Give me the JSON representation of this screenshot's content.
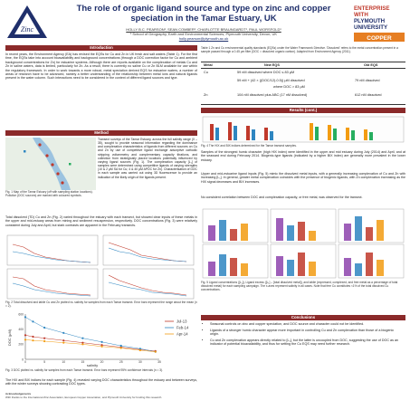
{
  "header": {
    "title_line1": "The role of organic ligand source and type on zinc and copper",
    "title_line2": "speciation in the Tamar Estuary, UK",
    "authors": "HOLLY B.C. PEARSON¹, SEAN COMBER¹, CHARLOTTE BRAUNGARDT¹, PAUL WORSFOLD¹",
    "affiliation": "¹ School of Geography, Earth and Environmental Sciences, Plymouth University, Devon, UK",
    "email": "holly.pearson@plymouth.ac.uk",
    "logo_left_text": "Zinc",
    "logo_right_line1": "ENTERPRISE",
    "logo_right_line2": "WITH",
    "logo_right_line3": "PLYMOUTH",
    "logo_right_line4": "UNIVERSITY",
    "logo_right_line5": "COPPER"
  },
  "sections": {
    "introduction": "Introduction",
    "method": "Method",
    "results": "Results (cont.)",
    "conclusions": "Conclusions"
  },
  "intro_text": "In recent years, the Environment Agency (EA) has revised the EQSs for Cu and Zn in UK fresh and salt waters (Table 1). For the first time, the EQSs take into account bioavailability and background concentrations (through a DOC correction factor for Cu and ambient background concentrations for Zn) for estuarine systems. Although there are reports available on the complexation of metals Cu and Zn in saline waters, data is limited, particularly for Zn. As a result, there is currently no saline Cu or Zn BLM available for use within the regulatory framework. In order to work towards a more robust, metal speciation derived EQS for estuarine waters, a number of areas of research have to be advanced, namely a better understanding of the relationship between metal ions and natural ligands present in the water column. Such interactions need to be considered in the context of different ligand sources and type.",
  "table1": {
    "caption": "Table 1 Zn and Cu environmental quality standards (EQSs) under the Water Framework Directive. 'Dissolved' refers to the metal concentration present in a sample passed through a 0.45 μm filter (DOC = dissolved organic carbon). Adapted from Environment Agency (2011).",
    "headers": [
      "Metal",
      "New EQS",
      "Old EQS"
    ],
    "rows": [
      [
        "Cu",
        "59 nM dissolved where DOC ≤ 83 μM",
        ""
      ],
      [
        "",
        "59 nM + (42 × ((DOC/12)-0.5)) μM dissolved",
        "79 nM dissolved"
      ],
      [
        "",
        "where DOC > 83 μM",
        ""
      ],
      [
        "Zn",
        "104 nM dissolved plus ABC (17 nM dissolved)",
        "612 nM dissolved"
      ]
    ]
  },
  "method_text": "Transect surveys of the Tamar Estuary, across the full salinity range (0 – 35), sought to provide seasonal information regarding the dominance and complexation characteristics of ligands from different sources on Cu and Zn by use of competitive ligand exchange adsorptive cathodic stripping voltammetry and complementary capacity titrations, and collection from strategically placed locations potentially influenced by varying ligand sources (Fig. 1). The complexation capacity [L₁] of samples were determined using competitive ligands of varying strengths (10 & 2 μM SA for Cu; 4 & 40 μM APDC for Zn). Characterisation of DOC in each sample was carried out using 3D fluorescence to provide an indication of the likely origin of the ligands present.",
  "fig1_caption": "Fig. 1 Map of the Tamar Estuary (off with sampling station locations). Pollution (DOC sources) are marked with coloured symbols.",
  "results_text1": "Total dissolved (TD) Cu and Zn (Fig. 2) varied throughout the estuary with each transect, but showed clear inputs of these metals in the upper and mid-estuary areas from mining and sediment resuspension, respectively. DOC concentrations (Fig. 3) were relatively consistent during July and April, but stark contrasts are apparent in the February transects.",
  "fig2_caption": "Fig. 2 Total dissolved and labile Cu and Zn plotted vs. salinity for samples from each Tamar transect. Error bars represent the range about the mean (n = 2).",
  "fig3_caption": "Fig. 3 DOC plotted vs. salinity for samples from each Tamar transect. Error bars represent 95% confidence intervals (n = 3).",
  "fig3_legend": [
    "Jul-13",
    "Feb-14",
    "Apr-14"
  ],
  "fig3_xlabel": "salinity",
  "fig3_ylabel": "DOC (μM)",
  "results_text2": "The HIX and BIX indices for each sample (Fig. 4) revealed varying DOC characteristics throughout the estuary and between surveys, with the winter surveys showing contrasting DOC types.",
  "fig4_caption": "Fig. 4 The HIX and BIX indices determined for the Tamar transect samples.",
  "results_text3": "Samples of the strongest humic character (high HIX index) were identified in the upper and mid estuary during July (2014) and April, and at the seaward end during February 2014. Biogenic-type ligands (indicated by a higher BIX index) are generally more prevalent in the lower estuary.",
  "results_text4": "Upper and mid-estuarine ligand inputs (Fig. 5) mimic the dissolved metal inputs, with a generally increasing complexation of Cu and Zn with increasing [L₁]. In general, greater metal complexation coincides with the presence of biogenic ligands, with Zn complexation increasing as the HIX signal decreases and BIX increases.",
  "results_text5": "No consistent correlation between DOC and complexation capacity, or free metal, was observed for the transect.",
  "fig5_caption": "Fig. 5 Ligand concentrations ([L₁]), Ligand excess ([L₁] – [total dissolved metal]), and labile (expressed, complexed, and free metal as a percentage of total dissolved metal) for each sampling campaign. The x-axes represent salinity in all cases. Note that free Cu constitutes <1% of the total dissolved Cu concentrations.",
  "conclusions": [
    "Seasonal controls on zinc and copper speciation, and DOC source and character could not be identified.",
    "Ligands of a stronger humic character appear more important in controlling Cu and Zn complexation than those of a biogenic origin.",
    "Cu and Zn complexation appears directly related to [L₁], but the latter is uncoupled from DOC, suggesting the use of DOC as an indicator of potential bioavailability, and thus for setting the Cu EQS may need further research."
  ],
  "acknowledgements": "Acknowledgements",
  "ack_text": "With thanks to the International Zinc Association, European Copper Association, and Plymouth University for funding this research.",
  "colors": {
    "section_bar": "#8b2a2a",
    "title": "#1f2f6b",
    "series_jul": "#c0392b",
    "series_feb": "#2e86c1",
    "series_apr": "#f39c12"
  },
  "chart_data": [
    {
      "type": "scatter",
      "title": "DOC vs salinity",
      "xlabel": "salinity",
      "ylabel": "DOC (μM)",
      "xlim": [
        0,
        35
      ],
      "ylim": [
        0,
        600
      ],
      "series": [
        {
          "name": "Jul-13",
          "x": [
            0,
            2,
            5,
            10,
            15,
            20,
            25,
            30,
            34
          ],
          "y": [
            320,
            300,
            280,
            250,
            220,
            190,
            160,
            130,
            110
          ]
        },
        {
          "name": "Feb-14",
          "x": [
            0,
            2,
            5,
            10,
            15,
            20,
            25,
            30,
            34
          ],
          "y": [
            560,
            500,
            420,
            350,
            280,
            230,
            180,
            140,
            100
          ]
        },
        {
          "name": "Apr-14",
          "x": [
            0,
            2,
            5,
            10,
            15,
            20,
            25,
            30,
            34
          ],
          "y": [
            260,
            250,
            240,
            220,
            200,
            170,
            150,
            120,
            100
          ]
        }
      ]
    }
  ]
}
